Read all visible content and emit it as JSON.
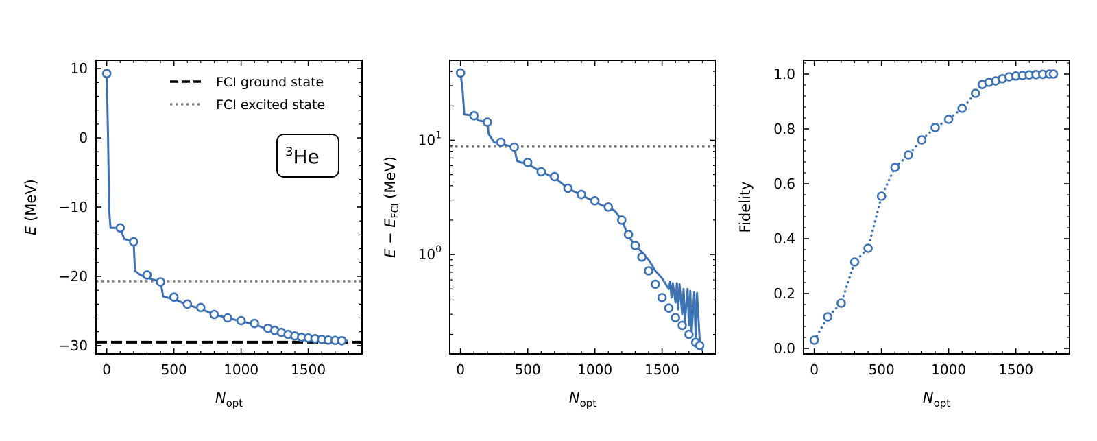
{
  "chart_data": [
    {
      "type": "line",
      "panel": "energy",
      "xlabel_main": "N",
      "xlabel_sub": "opt",
      "ylabel_main": "E",
      "ylabel_rest": " (MeV)",
      "xlim": [
        -80,
        1900
      ],
      "ylim": [
        -31.2,
        11.2
      ],
      "xticks": [
        0,
        500,
        1000,
        1500
      ],
      "xtick_labels": [
        "0",
        "500",
        "1000",
        "1500"
      ],
      "yticks": [
        10,
        0,
        -10,
        -20,
        -30
      ],
      "ytick_labels": [
        "10",
        "0",
        "−10",
        "−20",
        "−30"
      ],
      "annotation_sup": "3",
      "annotation_main": "He",
      "legend": [
        {
          "label": "FCI ground state",
          "style": "dashed",
          "color": "#000000"
        },
        {
          "label": "FCI excited state",
          "style": "dotted",
          "color": "#808080"
        }
      ],
      "hlines": [
        {
          "name": "FCI ground state",
          "y": -29.5,
          "style": "dashed",
          "color": "#000000"
        },
        {
          "name": "FCI excited state",
          "y": -20.7,
          "style": "dotted",
          "color": "#808080"
        }
      ],
      "series": [
        {
          "name": "E",
          "color": "#3d72b4",
          "line_x": [
            0,
            10,
            18,
            28,
            100,
            130,
            200,
            210,
            250,
            300,
            400,
            420,
            500,
            600,
            700,
            800,
            900,
            1000,
            1100,
            1200,
            1300,
            1400,
            1500,
            1600,
            1700,
            1790
          ],
          "line_y": [
            9.3,
            0,
            -10.5,
            -13,
            -13,
            -14.6,
            -15,
            -19.2,
            -19.8,
            -20.2,
            -20.8,
            -22.9,
            -23.3,
            -24.1,
            -24.7,
            -25.5,
            -26.0,
            -26.5,
            -26.9,
            -27.7,
            -28.2,
            -28.5,
            -28.8,
            -29.0,
            -29.2,
            -29.3
          ],
          "marker_x": [
            0,
            100,
            200,
            300,
            400,
            500,
            600,
            700,
            800,
            900,
            1000,
            1100,
            1200,
            1250,
            1300,
            1350,
            1400,
            1450,
            1500,
            1550,
            1600,
            1650,
            1700,
            1750
          ],
          "marker_y": [
            9.3,
            -13.0,
            -15.0,
            -19.8,
            -20.8,
            -23.0,
            -24.0,
            -24.5,
            -25.5,
            -26.0,
            -26.4,
            -26.8,
            -27.5,
            -27.8,
            -28.1,
            -28.4,
            -28.6,
            -28.8,
            -28.9,
            -29.0,
            -29.1,
            -29.2,
            -29.25,
            -29.3
          ]
        }
      ]
    },
    {
      "type": "line",
      "panel": "error",
      "yscale": "log",
      "xlabel_main": "N",
      "xlabel_sub": "opt",
      "ylabel_main": "E − E",
      "ylabel_sub": "FCI",
      "ylabel_rest": " (MeV)",
      "xlim": [
        -80,
        1900
      ],
      "ylim": [
        0.135,
        50
      ],
      "xticks": [
        0,
        500,
        1000,
        1500
      ],
      "xtick_labels": [
        "0",
        "500",
        "1000",
        "1500"
      ],
      "yticks_major": [
        1,
        10
      ],
      "ytick_base": "10",
      "ytick_exponents": [
        "0",
        "1"
      ],
      "hlines": [
        {
          "name": "FCI excited state gap",
          "y": 8.8,
          "style": "dotted",
          "color": "#808080"
        }
      ],
      "series": [
        {
          "name": "E - E_FCI",
          "color": "#3d72b4",
          "line_x": [
            0,
            15,
            28,
            100,
            130,
            200,
            210,
            250,
            300,
            400,
            420,
            450,
            500,
            600,
            700,
            800,
            900,
            1000,
            1050,
            1100,
            1150,
            1200,
            1250,
            1300,
            1350,
            1400,
            1450,
            1500,
            1550,
            1560,
            1570,
            1580,
            1600,
            1610,
            1620,
            1630,
            1650,
            1660,
            1670,
            1690,
            1700,
            1710,
            1720,
            1740,
            1750,
            1760,
            1780,
            1800
          ],
          "line_y": [
            38.8,
            28,
            16.8,
            16.5,
            14.9,
            14.4,
            11.3,
            9.6,
            9.3,
            8.7,
            6.6,
            6.4,
            6.2,
            5.3,
            4.7,
            3.8,
            3.3,
            2.9,
            2.7,
            2.6,
            2.4,
            2.0,
            1.45,
            1.2,
            1.05,
            0.9,
            0.72,
            0.62,
            0.5,
            0.58,
            0.42,
            0.56,
            0.38,
            0.56,
            0.33,
            0.55,
            0.3,
            0.5,
            0.26,
            0.5,
            0.24,
            0.48,
            0.21,
            0.47,
            0.19,
            0.46,
            0.18,
            0.145
          ],
          "marker_x": [
            0,
            100,
            200,
            300,
            400,
            500,
            600,
            700,
            800,
            900,
            1000,
            1100,
            1200,
            1250,
            1300,
            1350,
            1400,
            1450,
            1500,
            1550,
            1600,
            1650,
            1700,
            1750,
            1780
          ],
          "marker_y": [
            38.8,
            16.4,
            14.4,
            9.6,
            8.7,
            6.4,
            5.3,
            4.8,
            3.8,
            3.35,
            2.95,
            2.6,
            2.0,
            1.5,
            1.2,
            0.95,
            0.72,
            0.55,
            0.42,
            0.34,
            0.28,
            0.24,
            0.2,
            0.17,
            0.16
          ]
        }
      ]
    },
    {
      "type": "line",
      "panel": "fidelity",
      "xlabel_main": "N",
      "xlabel_sub": "opt",
      "ylabel_main": "Fidelity",
      "xlim": [
        -80,
        1900
      ],
      "ylim": [
        -0.02,
        1.05
      ],
      "xticks": [
        0,
        500,
        1000,
        1500
      ],
      "xtick_labels": [
        "0",
        "500",
        "1000",
        "1500"
      ],
      "yticks": [
        0.0,
        0.2,
        0.4,
        0.6,
        0.8,
        1.0
      ],
      "ytick_labels": [
        "0.0",
        "0.2",
        "0.4",
        "0.6",
        "0.8",
        "1.0"
      ],
      "series": [
        {
          "name": "Fidelity",
          "color": "#3d72b4",
          "style": "dotted",
          "line_x": [
            0,
            100,
            200,
            300,
            400,
            500,
            600,
            700,
            800,
            900,
            1000,
            1100,
            1200,
            1250,
            1300,
            1350,
            1400,
            1450,
            1500,
            1550,
            1600,
            1650,
            1700,
            1750,
            1780
          ],
          "line_y": [
            0.03,
            0.115,
            0.165,
            0.315,
            0.365,
            0.555,
            0.66,
            0.705,
            0.76,
            0.805,
            0.835,
            0.875,
            0.93,
            0.962,
            0.97,
            0.975,
            0.983,
            0.99,
            0.993,
            0.995,
            0.997,
            0.998,
            0.999,
            1.0,
            1.0
          ],
          "marker_x": [
            0,
            100,
            200,
            300,
            400,
            500,
            600,
            700,
            800,
            900,
            1000,
            1100,
            1200,
            1250,
            1300,
            1350,
            1400,
            1450,
            1500,
            1550,
            1600,
            1650,
            1700,
            1750,
            1780
          ],
          "marker_y": [
            0.03,
            0.115,
            0.165,
            0.315,
            0.365,
            0.555,
            0.66,
            0.705,
            0.76,
            0.805,
            0.835,
            0.875,
            0.93,
            0.962,
            0.97,
            0.975,
            0.983,
            0.99,
            0.993,
            0.995,
            0.997,
            0.998,
            0.999,
            1.0,
            1.0
          ]
        }
      ]
    }
  ]
}
